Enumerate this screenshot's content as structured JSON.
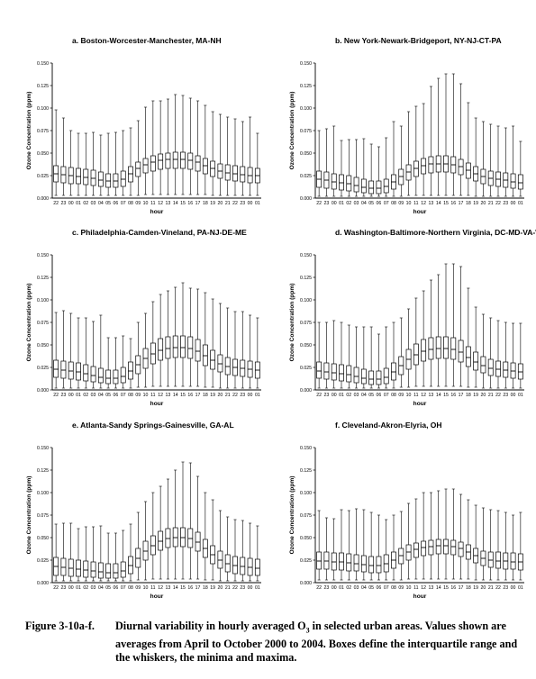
{
  "chart_data": [
    {
      "type": "box",
      "title": "a.  Boston-Worcester-Manchester, MA-NH",
      "xlabel": "hour",
      "ylabel": "Ozone Concentration (ppm)",
      "ylim": [
        0,
        0.15
      ],
      "yticks": [
        "0.000",
        "0.025",
        "0.050",
        "0.075",
        "0.100",
        "0.125",
        "0.150"
      ],
      "categories": [
        "22",
        "23",
        "00",
        "01",
        "02",
        "03",
        "04",
        "05",
        "06",
        "07",
        "08",
        "09",
        "10",
        "11",
        "12",
        "13",
        "14",
        "15",
        "16",
        "17",
        "18",
        "19",
        "20",
        "21",
        "22",
        "23",
        "00",
        "01"
      ],
      "min": [
        0.003,
        0.003,
        0.003,
        0.003,
        0.003,
        0.003,
        0.003,
        0.003,
        0.003,
        0.003,
        0.003,
        0.003,
        0.004,
        0.004,
        0.004,
        0.004,
        0.004,
        0.004,
        0.004,
        0.004,
        0.004,
        0.003,
        0.003,
        0.003,
        0.003,
        0.003,
        0.003,
        0.003
      ],
      "q1": [
        0.018,
        0.017,
        0.016,
        0.016,
        0.015,
        0.014,
        0.013,
        0.012,
        0.012,
        0.013,
        0.018,
        0.024,
        0.028,
        0.03,
        0.032,
        0.033,
        0.033,
        0.033,
        0.032,
        0.03,
        0.027,
        0.024,
        0.022,
        0.02,
        0.019,
        0.018,
        0.017,
        0.017
      ],
      "median": [
        0.027,
        0.026,
        0.025,
        0.024,
        0.023,
        0.022,
        0.02,
        0.019,
        0.019,
        0.021,
        0.027,
        0.033,
        0.037,
        0.04,
        0.042,
        0.043,
        0.043,
        0.043,
        0.042,
        0.04,
        0.036,
        0.033,
        0.03,
        0.028,
        0.027,
        0.026,
        0.025,
        0.025
      ],
      "q3": [
        0.036,
        0.035,
        0.034,
        0.033,
        0.032,
        0.031,
        0.029,
        0.027,
        0.027,
        0.03,
        0.035,
        0.04,
        0.044,
        0.047,
        0.049,
        0.05,
        0.051,
        0.051,
        0.05,
        0.047,
        0.044,
        0.041,
        0.038,
        0.037,
        0.036,
        0.035,
        0.034,
        0.033
      ],
      "max": [
        0.098,
        0.089,
        0.075,
        0.072,
        0.072,
        0.073,
        0.07,
        0.072,
        0.073,
        0.075,
        0.078,
        0.086,
        0.101,
        0.108,
        0.108,
        0.11,
        0.115,
        0.114,
        0.111,
        0.108,
        0.103,
        0.096,
        0.093,
        0.09,
        0.088,
        0.085,
        0.09,
        0.072
      ]
    },
    {
      "type": "box",
      "title": "b.  New York-Newark-Bridgeport, NY-NJ-CT-PA",
      "xlabel": "hour",
      "ylabel": "Ozone Concentration (ppm)",
      "ylim": [
        0,
        0.15
      ],
      "yticks": [
        "0.000",
        "0.025",
        "0.050",
        "0.075",
        "0.100",
        "0.125",
        "0.150"
      ],
      "categories": [
        "22",
        "23",
        "00",
        "01",
        "02",
        "03",
        "04",
        "05",
        "06",
        "07",
        "08",
        "09",
        "10",
        "11",
        "12",
        "13",
        "14",
        "15",
        "16",
        "17",
        "18",
        "19",
        "20",
        "21",
        "22",
        "23",
        "00",
        "01"
      ],
      "min": [
        0.002,
        0.002,
        0.002,
        0.002,
        0.002,
        0.002,
        0.002,
        0.002,
        0.002,
        0.002,
        0.002,
        0.002,
        0.003,
        0.003,
        0.003,
        0.003,
        0.003,
        0.003,
        0.003,
        0.003,
        0.003,
        0.002,
        0.002,
        0.002,
        0.002,
        0.002,
        0.002,
        0.002
      ],
      "q1": [
        0.012,
        0.011,
        0.01,
        0.009,
        0.008,
        0.007,
        0.006,
        0.005,
        0.005,
        0.006,
        0.01,
        0.015,
        0.02,
        0.024,
        0.027,
        0.028,
        0.029,
        0.029,
        0.028,
        0.026,
        0.022,
        0.019,
        0.016,
        0.014,
        0.013,
        0.012,
        0.011,
        0.01
      ],
      "median": [
        0.021,
        0.02,
        0.018,
        0.017,
        0.016,
        0.014,
        0.012,
        0.011,
        0.011,
        0.013,
        0.018,
        0.024,
        0.029,
        0.033,
        0.036,
        0.038,
        0.038,
        0.038,
        0.037,
        0.035,
        0.031,
        0.027,
        0.024,
        0.022,
        0.021,
        0.02,
        0.018,
        0.017
      ],
      "q3": [
        0.03,
        0.029,
        0.027,
        0.026,
        0.025,
        0.023,
        0.021,
        0.019,
        0.019,
        0.021,
        0.026,
        0.032,
        0.037,
        0.041,
        0.044,
        0.046,
        0.047,
        0.047,
        0.046,
        0.043,
        0.039,
        0.035,
        0.032,
        0.03,
        0.029,
        0.028,
        0.027,
        0.026
      ],
      "max": [
        0.075,
        0.077,
        0.08,
        0.064,
        0.065,
        0.065,
        0.066,
        0.06,
        0.057,
        0.067,
        0.085,
        0.08,
        0.096,
        0.102,
        0.105,
        0.124,
        0.133,
        0.138,
        0.138,
        0.127,
        0.106,
        0.089,
        0.085,
        0.082,
        0.08,
        0.078,
        0.08,
        0.063
      ]
    },
    {
      "type": "box",
      "title": "c.  Philadelphia-Camden-Vineland, PA-NJ-DE-ME",
      "xlabel": "hour",
      "ylabel": "Ozone Concentration (ppm)",
      "ylim": [
        0,
        0.15
      ],
      "yticks": [
        "0.000",
        "0.025",
        "0.050",
        "0.075",
        "0.100",
        "0.125",
        "0.150"
      ],
      "categories": [
        "22",
        "23",
        "00",
        "01",
        "02",
        "03",
        "04",
        "05",
        "06",
        "07",
        "08",
        "09",
        "10",
        "11",
        "12",
        "13",
        "14",
        "15",
        "16",
        "17",
        "18",
        "19",
        "20",
        "21",
        "22",
        "23",
        "00",
        "01"
      ],
      "min": [
        0.002,
        0.002,
        0.002,
        0.002,
        0.002,
        0.002,
        0.002,
        0.002,
        0.002,
        0.002,
        0.002,
        0.003,
        0.003,
        0.004,
        0.004,
        0.004,
        0.004,
        0.004,
        0.004,
        0.004,
        0.003,
        0.003,
        0.002,
        0.002,
        0.002,
        0.002,
        0.002,
        0.002
      ],
      "q1": [
        0.014,
        0.013,
        0.012,
        0.011,
        0.01,
        0.009,
        0.008,
        0.007,
        0.007,
        0.008,
        0.012,
        0.018,
        0.024,
        0.029,
        0.033,
        0.035,
        0.036,
        0.036,
        0.035,
        0.032,
        0.027,
        0.023,
        0.02,
        0.017,
        0.016,
        0.015,
        0.014,
        0.013
      ],
      "median": [
        0.023,
        0.022,
        0.021,
        0.02,
        0.018,
        0.016,
        0.014,
        0.013,
        0.013,
        0.015,
        0.021,
        0.028,
        0.035,
        0.04,
        0.044,
        0.046,
        0.047,
        0.047,
        0.046,
        0.043,
        0.038,
        0.033,
        0.029,
        0.026,
        0.025,
        0.024,
        0.023,
        0.022
      ],
      "q3": [
        0.033,
        0.032,
        0.031,
        0.03,
        0.028,
        0.026,
        0.024,
        0.022,
        0.022,
        0.025,
        0.031,
        0.038,
        0.046,
        0.052,
        0.057,
        0.059,
        0.06,
        0.06,
        0.059,
        0.056,
        0.05,
        0.044,
        0.039,
        0.036,
        0.034,
        0.033,
        0.032,
        0.031
      ],
      "max": [
        0.086,
        0.088,
        0.085,
        0.08,
        0.08,
        0.076,
        0.083,
        0.058,
        0.058,
        0.06,
        0.057,
        0.075,
        0.085,
        0.098,
        0.106,
        0.11,
        0.114,
        0.119,
        0.113,
        0.112,
        0.108,
        0.101,
        0.096,
        0.091,
        0.087,
        0.087,
        0.083,
        0.08
      ]
    },
    {
      "type": "box",
      "title": "d.  Washington-Baltimore-Northern Virginia, DC-MD-VA-WV",
      "xlabel": "hour",
      "ylabel": "Ozone Concentration (ppm)",
      "ylim": [
        0,
        0.15
      ],
      "yticks": [
        "0.000",
        "0.025",
        "0.050",
        "0.075",
        "0.100",
        "0.125",
        "0.150"
      ],
      "categories": [
        "22",
        "23",
        "00",
        "01",
        "02",
        "03",
        "04",
        "05",
        "06",
        "07",
        "08",
        "09",
        "10",
        "11",
        "12",
        "13",
        "14",
        "15",
        "16",
        "17",
        "18",
        "19",
        "20",
        "21",
        "22",
        "23",
        "00",
        "01"
      ],
      "min": [
        0.002,
        0.002,
        0.002,
        0.002,
        0.002,
        0.002,
        0.002,
        0.002,
        0.002,
        0.002,
        0.002,
        0.003,
        0.003,
        0.004,
        0.004,
        0.004,
        0.004,
        0.004,
        0.004,
        0.004,
        0.003,
        0.003,
        0.002,
        0.002,
        0.002,
        0.002,
        0.002,
        0.002
      ],
      "q1": [
        0.013,
        0.012,
        0.011,
        0.01,
        0.009,
        0.008,
        0.007,
        0.006,
        0.006,
        0.007,
        0.011,
        0.017,
        0.023,
        0.028,
        0.032,
        0.034,
        0.035,
        0.035,
        0.034,
        0.031,
        0.026,
        0.022,
        0.019,
        0.016,
        0.015,
        0.014,
        0.013,
        0.012
      ],
      "median": [
        0.021,
        0.02,
        0.019,
        0.018,
        0.017,
        0.015,
        0.013,
        0.012,
        0.012,
        0.014,
        0.02,
        0.027,
        0.034,
        0.039,
        0.043,
        0.045,
        0.046,
        0.046,
        0.045,
        0.042,
        0.036,
        0.031,
        0.027,
        0.024,
        0.023,
        0.022,
        0.021,
        0.02
      ],
      "q3": [
        0.031,
        0.03,
        0.029,
        0.028,
        0.027,
        0.025,
        0.023,
        0.021,
        0.021,
        0.024,
        0.03,
        0.037,
        0.045,
        0.051,
        0.056,
        0.058,
        0.059,
        0.059,
        0.058,
        0.055,
        0.048,
        0.042,
        0.037,
        0.034,
        0.032,
        0.031,
        0.03,
        0.029
      ],
      "max": [
        0.075,
        0.075,
        0.077,
        0.075,
        0.072,
        0.07,
        0.07,
        0.07,
        0.062,
        0.07,
        0.075,
        0.08,
        0.09,
        0.102,
        0.11,
        0.122,
        0.128,
        0.14,
        0.14,
        0.137,
        0.113,
        0.092,
        0.084,
        0.08,
        0.077,
        0.075,
        0.074,
        0.074
      ]
    },
    {
      "type": "box",
      "title": "e.  Atlanta-Sandy Springs-Gainesville, GA-AL",
      "xlabel": "hour",
      "ylabel": "Ozone Concentration (ppm)",
      "ylim": [
        0,
        0.15
      ],
      "yticks": [
        "0.000",
        "0.025",
        "0.050",
        "0.075",
        "0.100",
        "0.125",
        "0.150"
      ],
      "categories": [
        "22",
        "23",
        "00",
        "01",
        "02",
        "03",
        "04",
        "05",
        "06",
        "07",
        "08",
        "09",
        "10",
        "11",
        "12",
        "13",
        "14",
        "15",
        "16",
        "17",
        "18",
        "19",
        "20",
        "21",
        "22",
        "23",
        "00",
        "01"
      ],
      "min": [
        0.002,
        0.002,
        0.002,
        0.002,
        0.002,
        0.002,
        0.002,
        0.002,
        0.002,
        0.002,
        0.002,
        0.003,
        0.003,
        0.004,
        0.004,
        0.004,
        0.004,
        0.004,
        0.004,
        0.004,
        0.003,
        0.003,
        0.002,
        0.002,
        0.002,
        0.002,
        0.002,
        0.002
      ],
      "q1": [
        0.008,
        0.008,
        0.007,
        0.007,
        0.006,
        0.006,
        0.005,
        0.005,
        0.005,
        0.006,
        0.01,
        0.017,
        0.025,
        0.031,
        0.036,
        0.039,
        0.04,
        0.04,
        0.039,
        0.035,
        0.028,
        0.021,
        0.016,
        0.012,
        0.01,
        0.009,
        0.008,
        0.008
      ],
      "median": [
        0.018,
        0.017,
        0.016,
        0.015,
        0.014,
        0.013,
        0.012,
        0.011,
        0.011,
        0.013,
        0.019,
        0.027,
        0.035,
        0.041,
        0.046,
        0.049,
        0.05,
        0.05,
        0.049,
        0.045,
        0.038,
        0.031,
        0.025,
        0.021,
        0.019,
        0.018,
        0.017,
        0.016
      ],
      "q3": [
        0.028,
        0.027,
        0.026,
        0.025,
        0.024,
        0.023,
        0.022,
        0.021,
        0.021,
        0.023,
        0.029,
        0.038,
        0.046,
        0.052,
        0.057,
        0.06,
        0.061,
        0.061,
        0.06,
        0.056,
        0.048,
        0.041,
        0.035,
        0.031,
        0.029,
        0.028,
        0.027,
        0.026
      ],
      "max": [
        0.065,
        0.066,
        0.066,
        0.06,
        0.062,
        0.062,
        0.063,
        0.055,
        0.055,
        0.058,
        0.065,
        0.078,
        0.09,
        0.1,
        0.107,
        0.115,
        0.125,
        0.134,
        0.133,
        0.118,
        0.1,
        0.092,
        0.08,
        0.073,
        0.07,
        0.069,
        0.066,
        0.063
      ]
    },
    {
      "type": "box",
      "title": "f.  Cleveland-Akron-Elyria, OH",
      "xlabel": "hour",
      "ylabel": "Ozone Concentration (ppm)",
      "ylim": [
        0,
        0.15
      ],
      "yticks": [
        "0.000",
        "0.025",
        "0.050",
        "0.075",
        "0.100",
        "0.125",
        "0.150"
      ],
      "categories": [
        "22",
        "23",
        "00",
        "01",
        "02",
        "03",
        "04",
        "05",
        "06",
        "07",
        "08",
        "09",
        "10",
        "11",
        "12",
        "13",
        "14",
        "15",
        "16",
        "17",
        "18",
        "19",
        "20",
        "21",
        "22",
        "23",
        "00",
        "01"
      ],
      "min": [
        0.003,
        0.003,
        0.003,
        0.003,
        0.003,
        0.003,
        0.003,
        0.003,
        0.003,
        0.003,
        0.003,
        0.003,
        0.004,
        0.004,
        0.004,
        0.004,
        0.004,
        0.004,
        0.004,
        0.004,
        0.004,
        0.003,
        0.003,
        0.003,
        0.003,
        0.003,
        0.003,
        0.003
      ],
      "q1": [
        0.015,
        0.015,
        0.014,
        0.014,
        0.013,
        0.013,
        0.012,
        0.011,
        0.011,
        0.012,
        0.016,
        0.021,
        0.025,
        0.028,
        0.03,
        0.031,
        0.032,
        0.032,
        0.031,
        0.029,
        0.026,
        0.022,
        0.019,
        0.017,
        0.016,
        0.015,
        0.015,
        0.014
      ],
      "median": [
        0.024,
        0.024,
        0.023,
        0.023,
        0.022,
        0.021,
        0.02,
        0.019,
        0.019,
        0.021,
        0.025,
        0.03,
        0.034,
        0.037,
        0.039,
        0.04,
        0.041,
        0.041,
        0.04,
        0.038,
        0.034,
        0.03,
        0.027,
        0.025,
        0.024,
        0.024,
        0.023,
        0.023
      ],
      "q3": [
        0.034,
        0.034,
        0.033,
        0.033,
        0.032,
        0.031,
        0.03,
        0.029,
        0.029,
        0.031,
        0.034,
        0.038,
        0.042,
        0.044,
        0.046,
        0.047,
        0.048,
        0.048,
        0.047,
        0.045,
        0.042,
        0.038,
        0.035,
        0.034,
        0.034,
        0.033,
        0.033,
        0.032
      ],
      "max": [
        0.08,
        0.072,
        0.071,
        0.081,
        0.08,
        0.082,
        0.081,
        0.078,
        0.075,
        0.07,
        0.075,
        0.079,
        0.088,
        0.093,
        0.1,
        0.1,
        0.102,
        0.104,
        0.104,
        0.098,
        0.092,
        0.086,
        0.083,
        0.081,
        0.08,
        0.078,
        0.075,
        0.078
      ]
    }
  ],
  "caption": {
    "label": "Figure 3-10a-f.",
    "text_before_sub": "Diurnal variability in hourly averaged O",
    "sub": "3",
    "text_after_sub": " in selected urban areas.  Values shown are averages from April to October 2000 to 2004.  Boxes define the interquartile range and the whiskers, the minima and maxima."
  }
}
